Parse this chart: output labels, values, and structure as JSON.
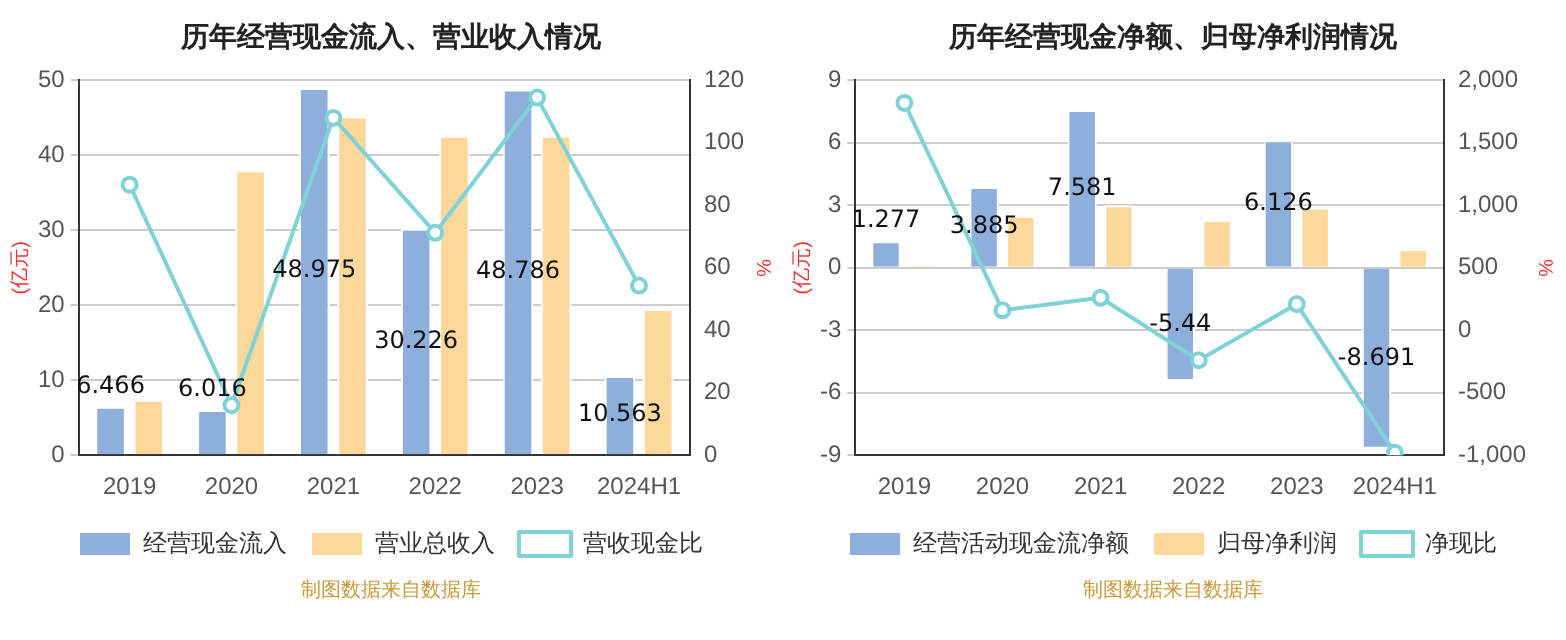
{
  "chart_data": [
    {
      "type": "bar",
      "title": "历年经营现金流入、营业收入情况",
      "ylabel": "(亿元)",
      "y2label": "%",
      "categories": [
        "2019",
        "2020",
        "2021",
        "2022",
        "2023",
        "2024H1"
      ],
      "series": [
        {
          "name": "经营现金流入",
          "color": "#8eaedb",
          "values": [
            6.466,
            6.016,
            48.975,
            30.226,
            48.786,
            10.563
          ],
          "value_labels": [
            "6.466",
            "6.016",
            "48.975",
            "30.226",
            "48.786",
            "10.563"
          ]
        },
        {
          "name": "营业总收入",
          "color": "#fdd89a",
          "values": [
            7.4,
            38.0,
            45.2,
            42.6,
            42.6,
            19.5
          ]
        },
        {
          "name": "营收现金比",
          "type": "line",
          "axis": "y2",
          "color": "#7fd3d6",
          "values": [
            86.6,
            16.0,
            108,
            71.2,
            114.5,
            54.3
          ]
        }
      ],
      "ylim": [
        0,
        50
      ],
      "yticks": [
        0,
        10,
        20,
        30,
        40,
        50
      ],
      "y2lim": [
        0,
        120
      ],
      "y2ticks": [
        0,
        20,
        40,
        60,
        80,
        100,
        120
      ],
      "grid": "y",
      "legend": "bottom",
      "marker": "circle",
      "line_style": "solid",
      "annotations": [
        "制图数据来自数据库"
      ]
    },
    {
      "type": "bar",
      "title": "历年经营现金净额、归母净利润情况",
      "ylabel": "(亿元)",
      "y2label": "%",
      "categories": [
        "2019",
        "2020",
        "2021",
        "2022",
        "2023",
        "2024H1"
      ],
      "series": [
        {
          "name": "经营活动现金流净额",
          "color": "#8eaedb",
          "values": [
            1.277,
            3.885,
            7.581,
            -5.44,
            6.126,
            -8.691
          ],
          "value_labels": [
            "1.277",
            "3.885",
            "7.581",
            "-5.44",
            "6.126",
            "-8.691"
          ]
        },
        {
          "name": "归母净利润",
          "color": "#fdd89a",
          "values": [
            0.1,
            2.5,
            3.0,
            2.3,
            2.9,
            0.9
          ]
        },
        {
          "name": "净现比",
          "type": "line",
          "axis": "y2",
          "color": "#7fd3d6",
          "values": [
            1820,
            160,
            260,
            -240,
            210,
            -980
          ]
        }
      ],
      "ylim": [
        -9,
        9
      ],
      "yticks": [
        -9,
        -6,
        -3,
        0,
        3,
        6,
        9
      ],
      "y2lim": [
        -1000,
        2000
      ],
      "y2ticks": [
        {
          "value": -1000,
          "label": "-1,000"
        },
        -500,
        0,
        500,
        {
          "value": 1000,
          "label": "1,000"
        },
        {
          "value": 1500,
          "label": "1,500"
        },
        {
          "value": 2000,
          "label": "2,000"
        }
      ],
      "grid": "y",
      "legend": "bottom",
      "marker": "circle",
      "line_style": "solid",
      "annotations": [
        "制图数据来自数据库"
      ]
    }
  ]
}
